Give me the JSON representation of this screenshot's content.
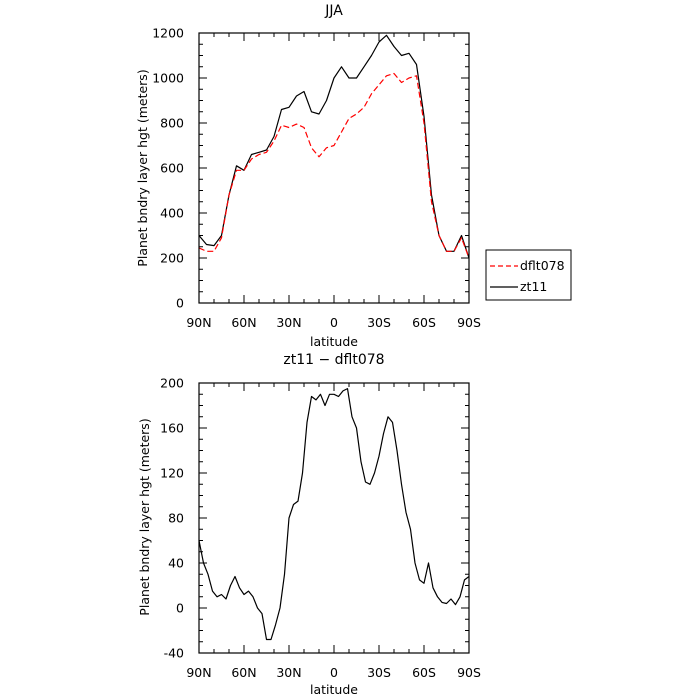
{
  "chart_data": [
    {
      "type": "line",
      "title": "JJA",
      "xlabel": "latitude",
      "ylabel": "Planet bndry layer hgt (meters)",
      "xlim": [
        90,
        -90
      ],
      "ylim": [
        0,
        1200
      ],
      "xticks": [
        90,
        60,
        30,
        0,
        -30,
        -60,
        -90
      ],
      "xtick_labels": [
        "90N",
        "60N",
        "30N",
        "0",
        "30S",
        "60S",
        "90S"
      ],
      "yticks": [
        0,
        200,
        400,
        600,
        800,
        1000,
        1200
      ],
      "ytick_labels": [
        "0",
        "200",
        "400",
        "600",
        "800",
        "1000",
        "1200"
      ],
      "legend_position": "right",
      "x": [
        90,
        85,
        80,
        75,
        70,
        65,
        60,
        55,
        50,
        45,
        40,
        35,
        30,
        25,
        20,
        15,
        10,
        5,
        0,
        -5,
        -10,
        -15,
        -20,
        -25,
        -30,
        -35,
        -40,
        -45,
        -50,
        -55,
        -60,
        -65,
        -70,
        -75,
        -80,
        -85,
        -90
      ],
      "series": [
        {
          "name": "dflt078",
          "color": "#ff0000",
          "dash": "dashed",
          "values": [
            245,
            230,
            230,
            290,
            480,
            590,
            590,
            640,
            660,
            670,
            720,
            790,
            780,
            795,
            780,
            690,
            650,
            690,
            700,
            760,
            820,
            840,
            870,
            930,
            970,
            1010,
            1020,
            980,
            1000,
            1010,
            800,
            450,
            300,
            230,
            230,
            290,
            200
          ]
        },
        {
          "name": "zt11",
          "color": "#000000",
          "dash": "solid",
          "values": [
            300,
            260,
            255,
            300,
            480,
            610,
            590,
            660,
            670,
            680,
            740,
            860,
            870,
            920,
            940,
            850,
            840,
            900,
            1000,
            1050,
            1000,
            1000,
            1050,
            1100,
            1160,
            1190,
            1140,
            1100,
            1110,
            1060,
            830,
            480,
            300,
            230,
            230,
            300,
            200
          ]
        }
      ]
    },
    {
      "type": "line",
      "title": "zt11 − dflt078",
      "xlabel": "latitude",
      "ylabel": "Planet bndry layer hgt (meters)",
      "xlim": [
        90,
        -90
      ],
      "ylim": [
        -40,
        200
      ],
      "xticks": [
        90,
        60,
        30,
        0,
        -30,
        -60,
        -90
      ],
      "xtick_labels": [
        "90N",
        "60N",
        "30N",
        "0",
        "30S",
        "60S",
        "90S"
      ],
      "yticks": [
        -40,
        0,
        40,
        80,
        120,
        160,
        200
      ],
      "ytick_labels": [
        "-40",
        "0",
        "40",
        "80",
        "120",
        "160",
        "200"
      ],
      "x": [
        90,
        87,
        84,
        81,
        78,
        75,
        72,
        69,
        66,
        63,
        60,
        57,
        54,
        51,
        48,
        45,
        42,
        39,
        36,
        33,
        30,
        27,
        24,
        21,
        18,
        15,
        12,
        9,
        6,
        3,
        0,
        -3,
        -6,
        -9,
        -12,
        -15,
        -18,
        -21,
        -24,
        -27,
        -30,
        -33,
        -36,
        -39,
        -42,
        -45,
        -48,
        -51,
        -54,
        -57,
        -60,
        -63,
        -66,
        -69,
        -72,
        -75,
        -78,
        -81,
        -84,
        -87,
        -90
      ],
      "series": [
        {
          "name": "",
          "color": "#000000",
          "dash": "solid",
          "values": [
            60,
            40,
            30,
            15,
            10,
            12,
            8,
            20,
            28,
            18,
            12,
            15,
            10,
            0,
            -5,
            -28,
            -28,
            -15,
            0,
            30,
            80,
            92,
            95,
            120,
            165,
            188,
            185,
            190,
            180,
            190,
            190,
            188,
            193,
            195,
            170,
            160,
            130,
            112,
            110,
            120,
            135,
            155,
            170,
            165,
            140,
            110,
            85,
            70,
            40,
            25,
            22,
            40,
            18,
            10,
            5,
            4,
            8,
            3,
            10,
            25,
            28
          ]
        }
      ]
    }
  ]
}
